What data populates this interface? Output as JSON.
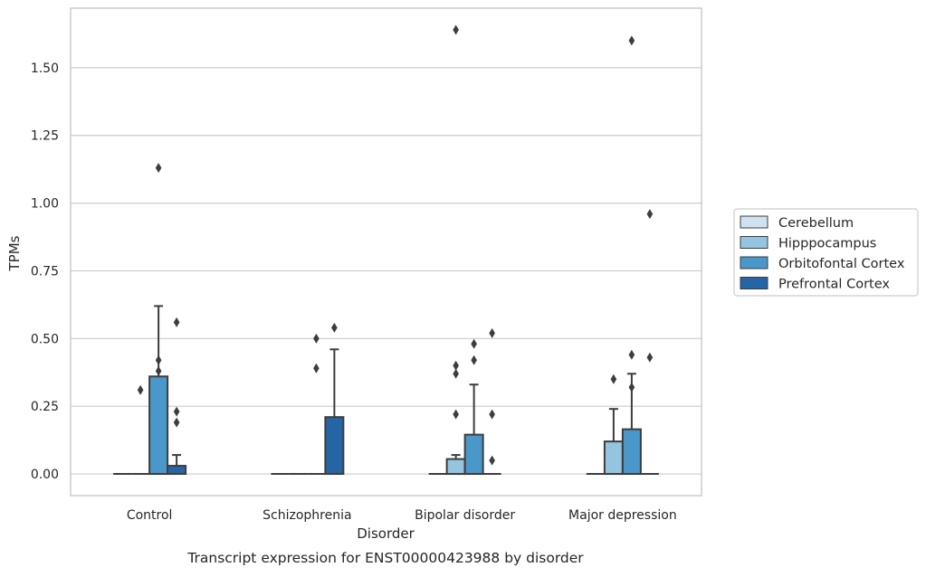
{
  "caption": "Transcript expression for ENST00000423988 by disorder",
  "chart_data": {
    "type": "boxplot",
    "xlabel": "Disorder",
    "ylabel": "TPMs",
    "categories": [
      "Control",
      "Schizophrenia",
      "Bipolar disorder",
      "Major depression"
    ],
    "ylim": [
      -0.08,
      1.72
    ],
    "yticks": [
      0.0,
      0.25,
      0.5,
      0.75,
      1.0,
      1.25,
      1.5
    ],
    "ytick_labels": [
      "0.00",
      "0.25",
      "0.50",
      "0.75",
      "1.00",
      "1.25",
      "1.50"
    ],
    "grid": "horizontal",
    "legend_position": "outside-right",
    "series": [
      {
        "name": "Cerebellum",
        "color": "#d0e1f2",
        "boxes": [
          {
            "q1": 0,
            "median": 0,
            "q3": 0,
            "whisker_low": 0,
            "whisker_high": 0,
            "outliers": []
          },
          {
            "q1": 0,
            "median": 0,
            "q3": 0,
            "whisker_low": 0,
            "whisker_high": 0,
            "outliers": []
          },
          {
            "q1": 0,
            "median": 0,
            "q3": 0,
            "whisker_low": 0,
            "whisker_high": 0,
            "outliers": []
          },
          {
            "q1": 0,
            "median": 0,
            "q3": 0,
            "whisker_low": 0,
            "whisker_high": 0,
            "outliers": []
          }
        ]
      },
      {
        "name": "Hipppocampus",
        "color": "#94c4df",
        "boxes": [
          {
            "q1": 0,
            "median": 0,
            "q3": 0,
            "whisker_low": 0,
            "whisker_high": 0,
            "outliers": [
              0.31
            ]
          },
          {
            "q1": 0,
            "median": 0,
            "q3": 0,
            "whisker_low": 0,
            "whisker_high": 0,
            "outliers": []
          },
          {
            "q1": 0,
            "median": 0,
            "q3": 0.055,
            "whisker_low": 0,
            "whisker_high": 0.07,
            "outliers": [
              0.22,
              0.37,
              0.4,
              1.64
            ]
          },
          {
            "q1": 0,
            "median": 0,
            "q3": 0.12,
            "whisker_low": 0,
            "whisker_high": 0.24,
            "outliers": [
              0.35
            ]
          }
        ]
      },
      {
        "name": "Orbitofontal Cortex",
        "color": "#4a98c9",
        "boxes": [
          {
            "q1": 0,
            "median": 0,
            "q3": 0.36,
            "whisker_low": 0,
            "whisker_high": 0.62,
            "outliers": [
              0.38,
              0.42,
              1.13
            ]
          },
          {
            "q1": 0,
            "median": 0,
            "q3": 0,
            "whisker_low": 0,
            "whisker_high": 0,
            "outliers": [
              0.39,
              0.5
            ]
          },
          {
            "q1": 0,
            "median": 0,
            "q3": 0.145,
            "whisker_low": 0,
            "whisker_high": 0.33,
            "outliers": [
              0.42,
              0.48
            ]
          },
          {
            "q1": 0,
            "median": 0,
            "q3": 0.165,
            "whisker_low": 0,
            "whisker_high": 0.37,
            "outliers": [
              0.32,
              0.44,
              1.6
            ]
          }
        ]
      },
      {
        "name": "Prefrontal Cortex",
        "color": "#2565a5",
        "boxes": [
          {
            "q1": 0,
            "median": 0,
            "q3": 0.03,
            "whisker_low": 0,
            "whisker_high": 0.07,
            "outliers": [
              0.19,
              0.23,
              0.56
            ]
          },
          {
            "q1": 0,
            "median": 0,
            "q3": 0.21,
            "whisker_low": 0,
            "whisker_high": 0.46,
            "outliers": [
              0.54
            ]
          },
          {
            "q1": 0,
            "median": 0,
            "q3": 0,
            "whisker_low": 0,
            "whisker_high": 0,
            "outliers": [
              0.05,
              0.22,
              0.52
            ]
          },
          {
            "q1": 0,
            "median": 0,
            "q3": 0,
            "whisker_low": 0,
            "whisker_high": 0,
            "outliers": [
              0.43,
              0.96
            ]
          }
        ]
      }
    ]
  }
}
